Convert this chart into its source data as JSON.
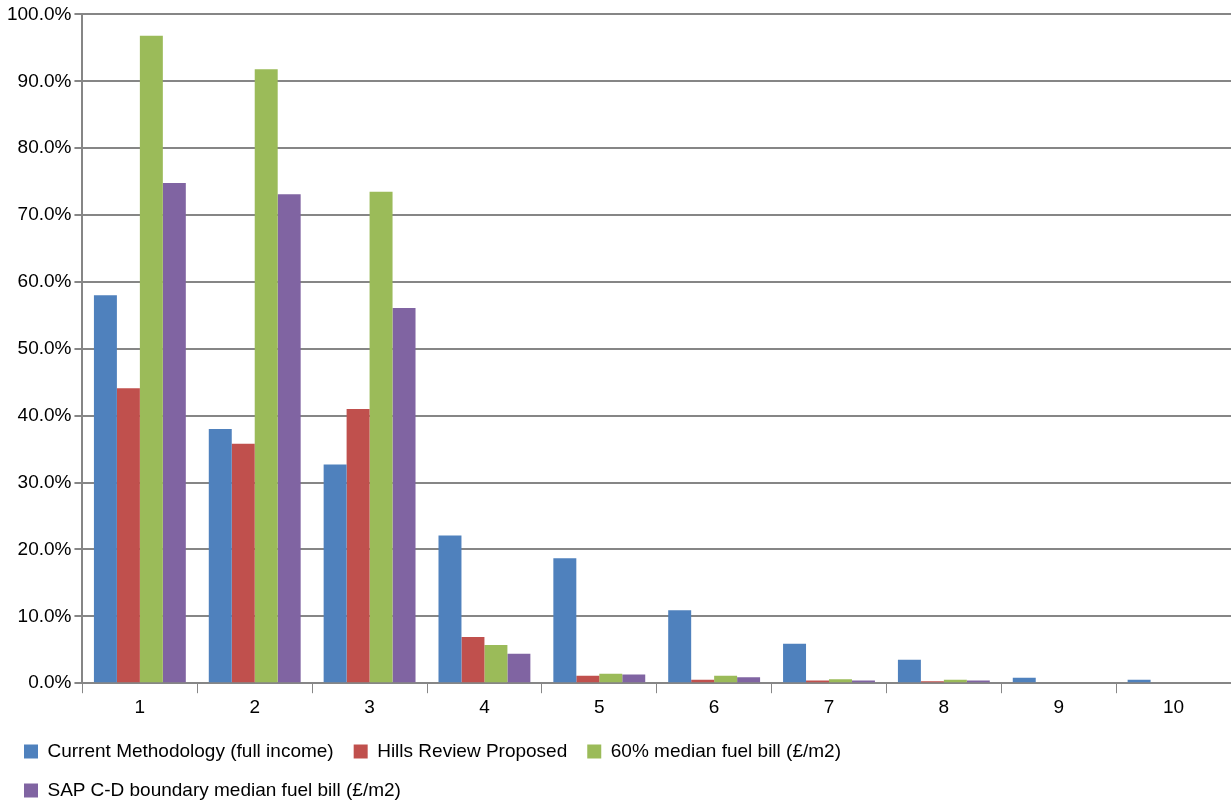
{
  "chart_data": {
    "type": "bar",
    "categories": [
      "1",
      "2",
      "3",
      "4",
      "5",
      "6",
      "7",
      "8",
      "9",
      "10"
    ],
    "series": [
      {
        "name": "Current Methodology (full income)",
        "color": "#4f81bd",
        "values": [
          58.0,
          38.0,
          32.7,
          22.1,
          18.7,
          10.9,
          5.9,
          3.5,
          0.8,
          0.5
        ]
      },
      {
        "name": "Hills Review Proposed",
        "color": "#c0504d",
        "values": [
          44.1,
          35.8,
          41.0,
          6.9,
          1.1,
          0.5,
          0.4,
          0.3,
          0,
          0
        ]
      },
      {
        "name": "60% median fuel bill (£/m2)",
        "color": "#9bbb59",
        "values": [
          96.8,
          91.8,
          73.5,
          5.7,
          1.4,
          1.1,
          0.6,
          0.5,
          0,
          0
        ]
      },
      {
        "name": "SAP C-D boundary median fuel bill (£/m2)",
        "color": "#8064a2",
        "values": [
          74.8,
          73.1,
          56.1,
          4.4,
          1.3,
          0.9,
          0.4,
          0.4,
          0,
          0
        ]
      }
    ],
    "ylim": [
      0,
      100
    ],
    "yticks": [
      {
        "value": 0,
        "label": "0.0%"
      },
      {
        "value": 10,
        "label": "10.0%"
      },
      {
        "value": 20,
        "label": "20.0%"
      },
      {
        "value": 30,
        "label": "30.0%"
      },
      {
        "value": 40,
        "label": "40.0%"
      },
      {
        "value": 50,
        "label": "50.0%"
      },
      {
        "value": 60,
        "label": "60.0%"
      },
      {
        "value": 70,
        "label": "70.0%"
      },
      {
        "value": 80,
        "label": "80.0%"
      },
      {
        "value": 90,
        "label": "90.0%"
      },
      {
        "value": 100,
        "label": "100.0%"
      }
    ],
    "grid": "y",
    "legend": "bottom"
  }
}
